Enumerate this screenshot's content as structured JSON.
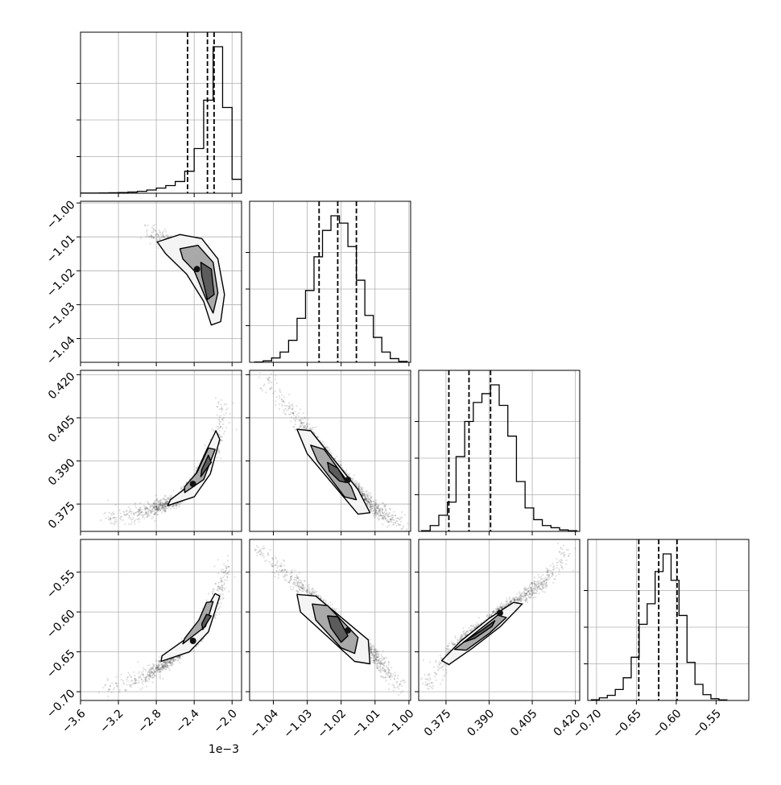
{
  "chart_data": {
    "type": "corner",
    "grid": true,
    "x_offset_label": "1e−3",
    "parameters": [
      {
        "range": [
          -3.6,
          -1.9
        ],
        "ticks": [
          -3.6,
          -3.2,
          -2.8,
          -2.4,
          -2.0
        ],
        "tick_labels": [
          "−3.6",
          "−3.2",
          "−2.8",
          "−2.4",
          "−2.0"
        ]
      },
      {
        "range": [
          -1.047,
          -0.9995
        ],
        "ticks": [
          -1.04,
          -1.03,
          -1.02,
          -1.01,
          -1.0
        ],
        "tick_labels": [
          "−1.04",
          "−1.03",
          "−1.02",
          "−1.01",
          "−1.00"
        ]
      },
      {
        "range": [
          0.3655,
          0.4215
        ],
        "ticks": [
          0.375,
          0.39,
          0.405,
          0.42
        ],
        "tick_labels": [
          "0.375",
          "0.390",
          "0.405",
          "0.420"
        ]
      },
      {
        "range": [
          -0.711,
          -0.509
        ],
        "ticks": [
          -0.7,
          -0.65,
          -0.6,
          -0.55
        ],
        "tick_labels": [
          "−0.70",
          "−0.65",
          "−0.60",
          "−0.55"
        ]
      }
    ],
    "histograms": [
      {
        "param": 0,
        "bin_edges": [
          -3.6,
          -3.5,
          -3.4,
          -3.3,
          -3.2,
          -3.1,
          -3.0,
          -2.9,
          -2.8,
          -2.7,
          -2.6,
          -2.5,
          -2.4,
          -2.3,
          -2.2,
          -2.1,
          -2.0,
          -1.9
        ],
        "counts": [
          1,
          1,
          2,
          3,
          5,
          8,
          13,
          22,
          35,
          52,
          80,
          150,
          305,
          635,
          1000,
          585,
          95
        ],
        "quantiles": [
          -2.47,
          -2.26,
          -2.19
        ]
      },
      {
        "param": 1,
        "bin_edges": [
          -1.0455,
          -1.043,
          -1.0405,
          -1.038,
          -1.0355,
          -1.033,
          -1.0305,
          -1.028,
          -1.0255,
          -1.023,
          -1.0205,
          -1.018,
          -1.0155,
          -1.013,
          -1.0105,
          -1.008,
          -1.0055,
          -1.003,
          -1.0005
        ],
        "counts": [
          2,
          10,
          30,
          70,
          150,
          300,
          490,
          720,
          900,
          1000,
          950,
          790,
          560,
          320,
          170,
          70,
          25,
          6
        ],
        "quantiles": [
          -1.0265,
          -1.021,
          -1.0155
        ]
      },
      {
        "param": 2,
        "bin_edges": [
          0.3665,
          0.3695,
          0.3725,
          0.3755,
          0.3785,
          0.3815,
          0.3845,
          0.3875,
          0.3905,
          0.3935,
          0.3965,
          0.3995,
          0.4025,
          0.4055,
          0.4085,
          0.4115,
          0.4145,
          0.4175,
          0.4205
        ],
        "counts": [
          5,
          40,
          110,
          200,
          510,
          750,
          880,
          940,
          1000,
          860,
          650,
          340,
          160,
          80,
          40,
          25,
          10,
          5
        ],
        "quantiles": [
          0.376,
          0.383,
          0.3905
        ]
      },
      {
        "param": 3,
        "bin_edges": [
          -0.7065,
          -0.6965,
          -0.6865,
          -0.6765,
          -0.6665,
          -0.6565,
          -0.6465,
          -0.6365,
          -0.6265,
          -0.6165,
          -0.6065,
          -0.5965,
          -0.5865,
          -0.5765,
          -0.5665,
          -0.5565,
          -0.5465,
          -0.5365
        ],
        "counts": [
          5,
          18,
          35,
          75,
          155,
          295,
          520,
          660,
          880,
          1000,
          820,
          580,
          260,
          110,
          40,
          12,
          4
        ],
        "quantiles": [
          -0.647,
          -0.622,
          -0.599
        ]
      }
    ],
    "joint": [
      {
        "x_param": 0,
        "y_param": 1,
        "ridge": [
          [
            -2.85,
            -1.009
          ],
          [
            -2.6,
            -1.013
          ],
          [
            -2.4,
            -1.0185
          ],
          [
            -2.25,
            -1.0235
          ],
          [
            -2.15,
            -1.03
          ]
        ],
        "rho": 0.9,
        "contour_levels": [
          {
            "level": "outer",
            "points": [
              [
                -2.79,
                -1.0115
              ],
              [
                -2.55,
                -1.0093
              ],
              [
                -2.32,
                -1.0105
              ],
              [
                -2.15,
                -1.0165
              ],
              [
                -2.08,
                -1.027
              ],
              [
                -2.12,
                -1.035
              ],
              [
                -2.22,
                -1.036
              ],
              [
                -2.3,
                -1.029
              ],
              [
                -2.48,
                -1.021
              ],
              [
                -2.7,
                -1.015
              ]
            ]
          },
          {
            "level": "middle",
            "points": [
              [
                -2.55,
                -1.0135
              ],
              [
                -2.36,
                -1.0125
              ],
              [
                -2.2,
                -1.0175
              ],
              [
                -2.15,
                -1.0265
              ],
              [
                -2.2,
                -1.0325
              ],
              [
                -2.28,
                -1.028
              ],
              [
                -2.4,
                -1.02
              ],
              [
                -2.52,
                -1.0165
              ]
            ]
          },
          {
            "level": "inner",
            "points": [
              [
                -2.33,
                -1.0175
              ],
              [
                -2.22,
                -1.0195
              ],
              [
                -2.19,
                -1.027
              ],
              [
                -2.26,
                -1.0285
              ],
              [
                -2.32,
                -1.0215
              ]
            ]
          }
        ]
      },
      {
        "x_param": 0,
        "y_param": 2,
        "ridge": [
          [
            -3.3,
            0.3695
          ],
          [
            -2.9,
            0.3725
          ],
          [
            -2.6,
            0.376
          ],
          [
            -2.35,
            0.384
          ],
          [
            -2.2,
            0.394
          ],
          [
            -2.08,
            0.408
          ]
        ],
        "rho": 0.9,
        "contour_levels": [
          {
            "level": "outer",
            "points": [
              [
                -2.68,
                0.3745
              ],
              [
                -2.4,
                0.3775
              ],
              [
                -2.23,
                0.3855
              ],
              [
                -2.13,
                0.3975
              ],
              [
                -2.17,
                0.4005
              ],
              [
                -2.28,
                0.393
              ],
              [
                -2.43,
                0.382
              ],
              [
                -2.65,
                0.3765
              ]
            ]
          },
          {
            "level": "middle",
            "points": [
              [
                -2.5,
                0.379
              ],
              [
                -2.3,
                0.3835
              ],
              [
                -2.18,
                0.394
              ],
              [
                -2.25,
                0.3945
              ],
              [
                -2.37,
                0.386
              ],
              [
                -2.5,
                0.381
              ]
            ]
          },
          {
            "level": "inner",
            "points": [
              [
                -2.33,
                0.3845
              ],
              [
                -2.22,
                0.3895
              ],
              [
                -2.25,
                0.392
              ],
              [
                -2.32,
                0.387
              ]
            ]
          }
        ]
      },
      {
        "x_param": 1,
        "y_param": 2,
        "ridge": [
          [
            -1.042,
            0.418
          ],
          [
            -1.03,
            0.4
          ],
          [
            -1.02,
            0.386
          ],
          [
            -1.01,
            0.373
          ],
          [
            -1.002,
            0.368
          ]
        ],
        "rho": 0.85,
        "contour_levels": [
          {
            "level": "outer",
            "points": [
              [
                -1.033,
                0.401
              ],
              [
                -1.029,
                0.4005
              ],
              [
                -1.015,
                0.38
              ],
              [
                -1.0115,
                0.372
              ],
              [
                -1.015,
                0.3715
              ],
              [
                -1.03,
                0.3925
              ]
            ]
          },
          {
            "level": "middle",
            "points": [
              [
                -1.029,
                0.3955
              ],
              [
                -1.025,
                0.394
              ],
              [
                -1.017,
                0.381
              ],
              [
                -1.0155,
                0.3765
              ],
              [
                -1.019,
                0.3775
              ],
              [
                -1.027,
                0.39
              ]
            ]
          },
          {
            "level": "inner",
            "points": [
              [
                -1.024,
                0.3895
              ],
              [
                -1.021,
                0.3875
              ],
              [
                -1.0185,
                0.3825
              ],
              [
                -1.0205,
                0.383
              ],
              [
                -1.0235,
                0.3865
              ]
            ]
          }
        ]
      },
      {
        "x_param": 0,
        "y_param": 3,
        "ridge": [
          [
            -3.3,
            -0.697
          ],
          [
            -2.9,
            -0.68
          ],
          [
            -2.6,
            -0.655
          ],
          [
            -2.35,
            -0.63
          ],
          [
            -2.2,
            -0.595
          ],
          [
            -2.05,
            -0.545
          ]
        ],
        "rho": 0.9,
        "contour_levels": [
          {
            "level": "outer",
            "points": [
              [
                -2.75,
                -0.662
              ],
              [
                -2.45,
                -0.65
              ],
              [
                -2.25,
                -0.625
              ],
              [
                -2.13,
                -0.58
              ],
              [
                -2.18,
                -0.577
              ],
              [
                -2.3,
                -0.603
              ],
              [
                -2.48,
                -0.633
              ],
              [
                -2.74,
                -0.655
              ]
            ]
          },
          {
            "level": "middle",
            "points": [
              [
                -2.52,
                -0.64
              ],
              [
                -2.28,
                -0.618
              ],
              [
                -2.2,
                -0.587
              ],
              [
                -2.27,
                -0.588
              ],
              [
                -2.35,
                -0.61
              ],
              [
                -2.5,
                -0.633
              ]
            ]
          },
          {
            "level": "inner",
            "points": [
              [
                -2.31,
                -0.622
              ],
              [
                -2.22,
                -0.605
              ],
              [
                -2.27,
                -0.603
              ],
              [
                -2.32,
                -0.615
              ]
            ]
          }
        ]
      },
      {
        "x_param": 1,
        "y_param": 3,
        "ridge": [
          [
            -1.044,
            -0.522
          ],
          [
            -1.03,
            -0.575
          ],
          [
            -1.02,
            -0.615
          ],
          [
            -1.01,
            -0.655
          ],
          [
            -1.003,
            -0.695
          ]
        ],
        "rho": 0.85,
        "contour_levels": [
          {
            "level": "outer",
            "points": [
              [
                -1.033,
                -0.578
              ],
              [
                -1.0275,
                -0.58
              ],
              [
                -1.012,
                -0.635
              ],
              [
                -1.0115,
                -0.665
              ],
              [
                -1.016,
                -0.662
              ],
              [
                -1.032,
                -0.6
              ]
            ]
          },
          {
            "level": "middle",
            "points": [
              [
                -1.0285,
                -0.59
              ],
              [
                -1.024,
                -0.592
              ],
              [
                -1.015,
                -0.632
              ],
              [
                -1.016,
                -0.652
              ],
              [
                -1.02,
                -0.645
              ],
              [
                -1.0275,
                -0.61
              ]
            ]
          },
          {
            "level": "inner",
            "points": [
              [
                -1.024,
                -0.605
              ],
              [
                -1.021,
                -0.606
              ],
              [
                -1.018,
                -0.63
              ],
              [
                -1.02,
                -0.638
              ],
              [
                -1.023,
                -0.62
              ]
            ]
          }
        ]
      },
      {
        "x_param": 2,
        "y_param": 3,
        "ridge": [
          [
            0.368,
            -0.692
          ],
          [
            0.378,
            -0.645
          ],
          [
            0.387,
            -0.62
          ],
          [
            0.396,
            -0.595
          ],
          [
            0.408,
            -0.565
          ],
          [
            0.417,
            -0.528
          ]
        ],
        "rho": 0.85,
        "contour_levels": [
          {
            "level": "outer",
            "points": [
              [
                0.3735,
                -0.661
              ],
              [
                0.38,
                -0.637
              ],
              [
                0.39,
                -0.608
              ],
              [
                0.3985,
                -0.588
              ],
              [
                0.4015,
                -0.59
              ],
              [
                0.394,
                -0.618
              ],
              [
                0.384,
                -0.646
              ],
              [
                0.376,
                -0.666
              ]
            ]
          },
          {
            "level": "middle",
            "points": [
              [
                0.378,
                -0.647
              ],
              [
                0.385,
                -0.627
              ],
              [
                0.393,
                -0.604
              ],
              [
                0.396,
                -0.607
              ],
              [
                0.39,
                -0.627
              ],
              [
                0.382,
                -0.648
              ]
            ]
          },
          {
            "level": "inner",
            "points": [
              [
                0.381,
                -0.638
              ],
              [
                0.387,
                -0.624
              ],
              [
                0.392,
                -0.611
              ],
              [
                0.391,
                -0.618
              ],
              [
                0.385,
                -0.633
              ]
            ]
          }
        ]
      }
    ]
  }
}
